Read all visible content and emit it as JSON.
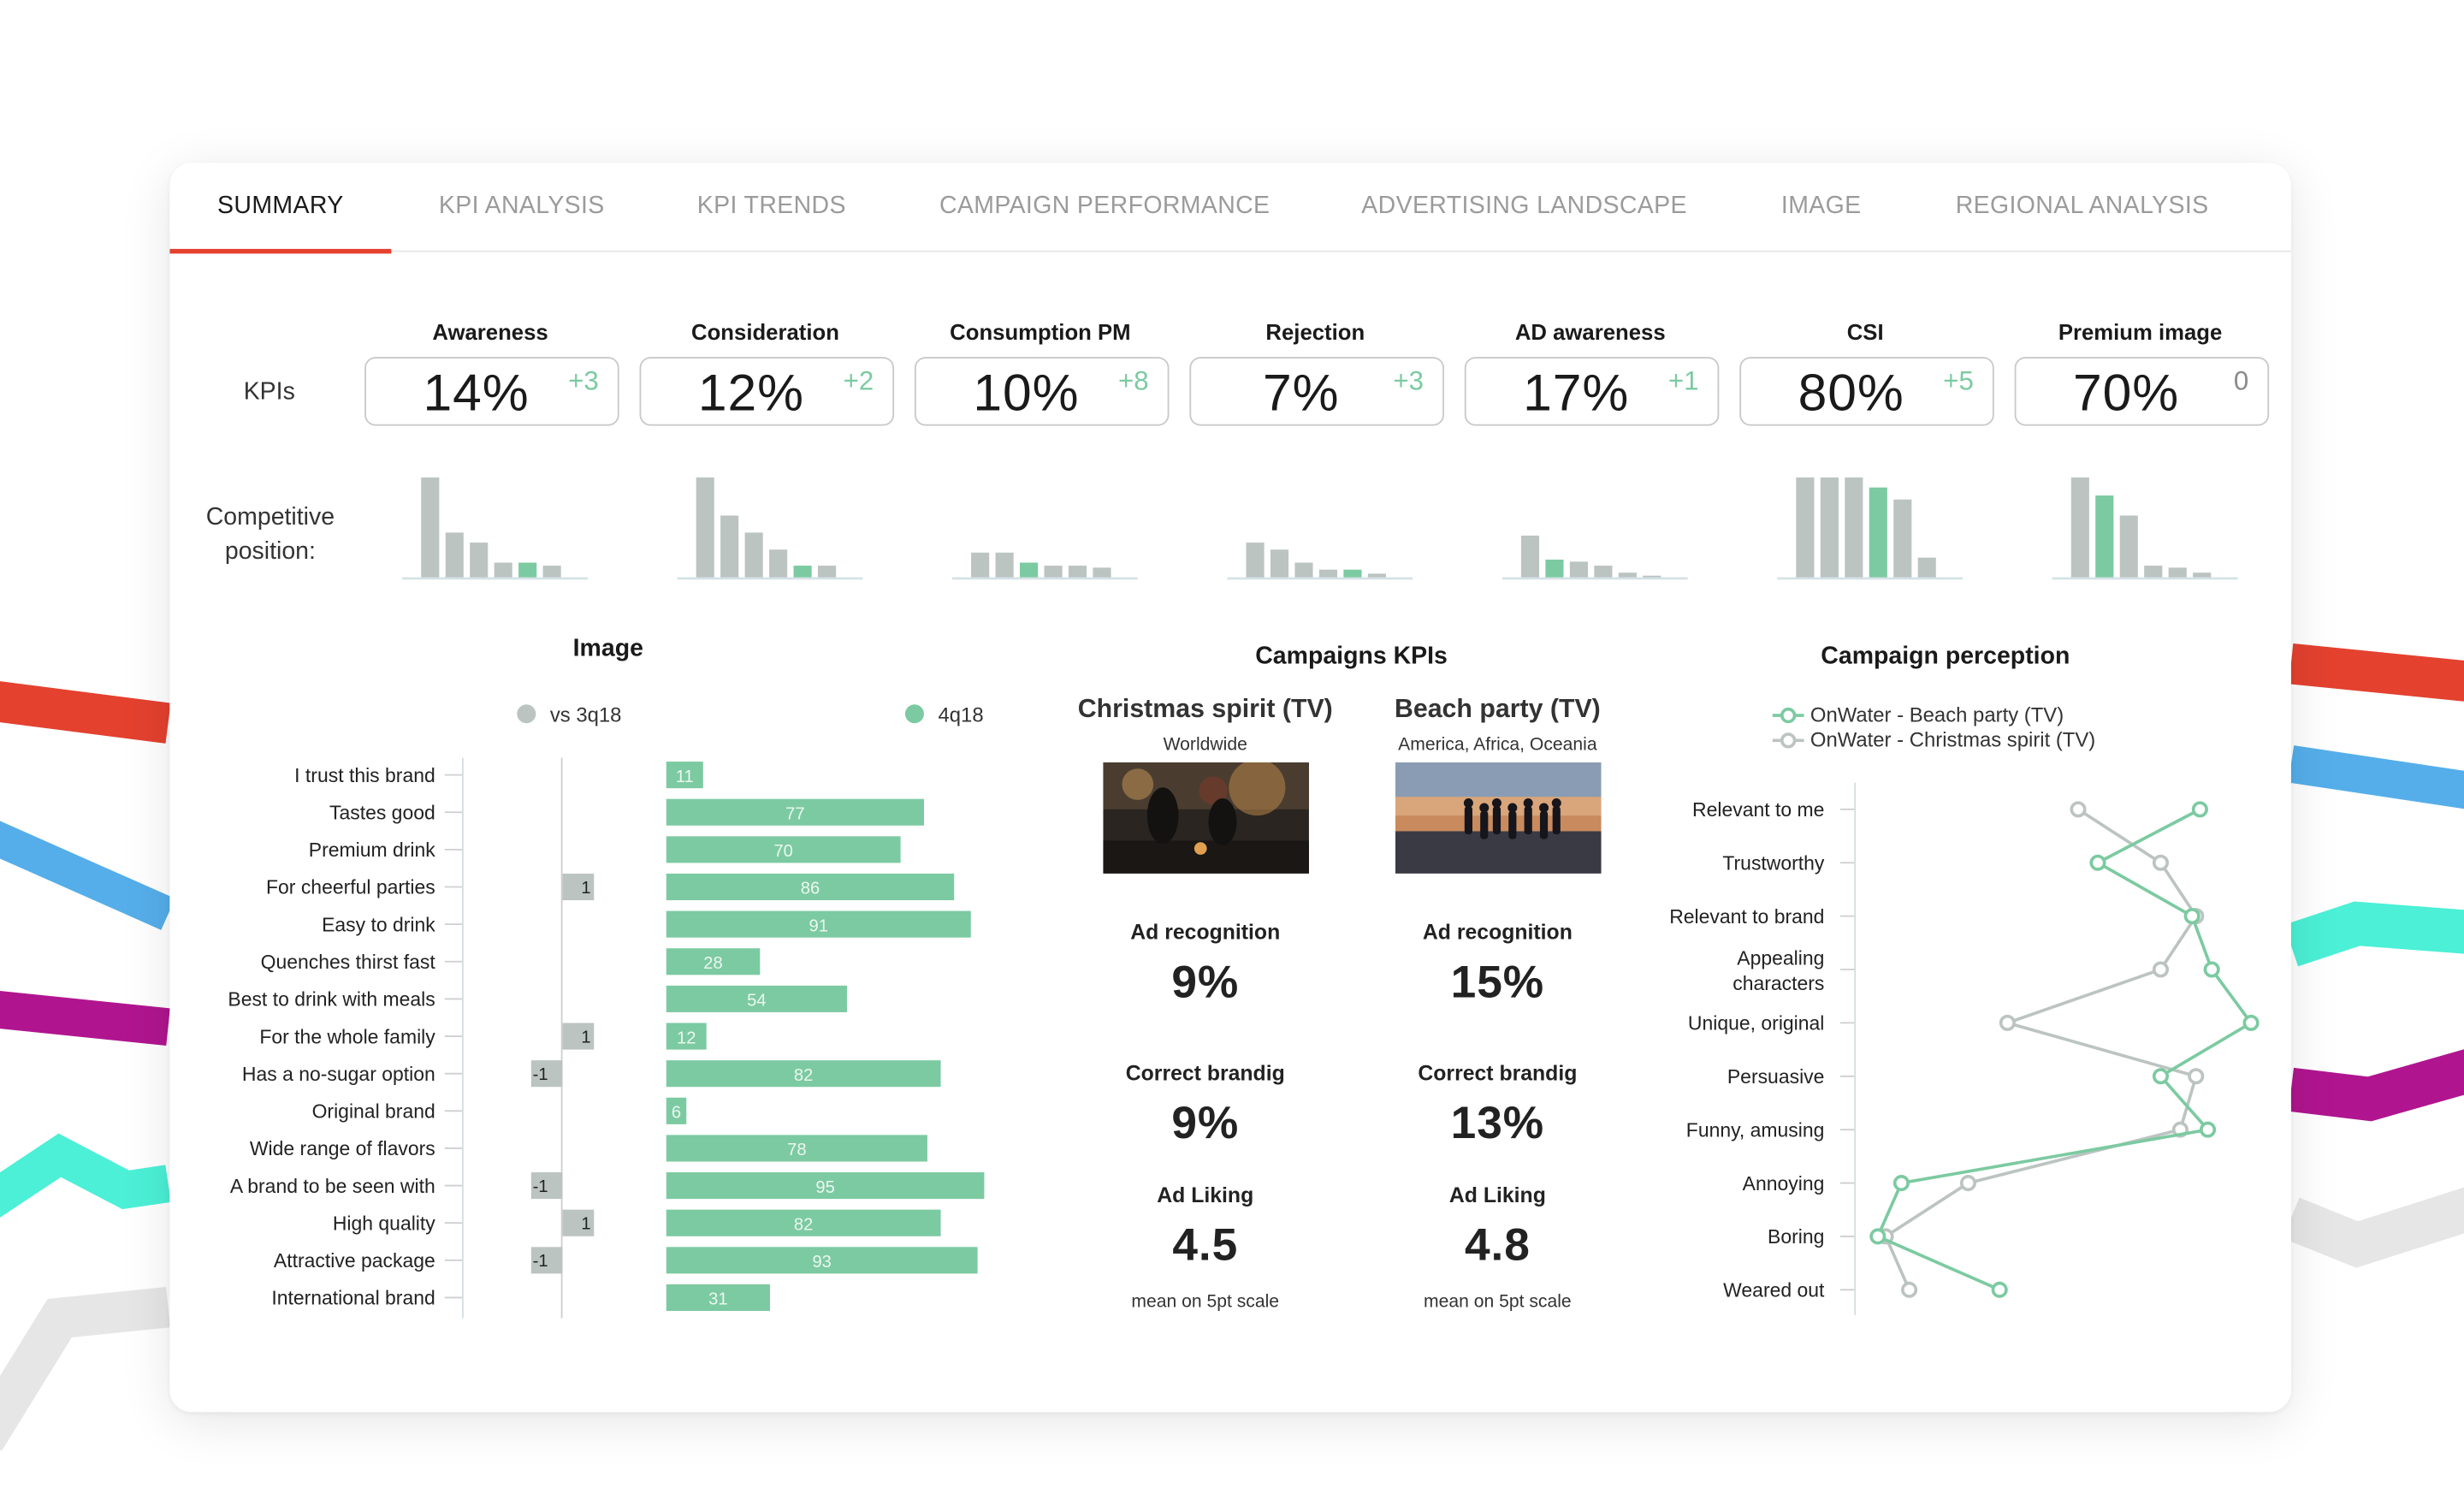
{
  "tabs": [
    {
      "label": "SUMMARY",
      "active": true
    },
    {
      "label": "KPI ANALYSIS",
      "active": false
    },
    {
      "label": "KPI TRENDS",
      "active": false
    },
    {
      "label": "CAMPAIGN PERFORMANCE",
      "active": false
    },
    {
      "label": "ADVERTISING LANDSCAPE",
      "active": false
    },
    {
      "label": "IMAGE",
      "active": false
    },
    {
      "label": "REGIONAL ANALYSIS",
      "active": false
    }
  ],
  "colors": {
    "accent": "#e4412f",
    "green": "#7ccaa1",
    "gray": "#bcc4c2"
  },
  "kpis": {
    "row_label": "KPIs",
    "competitive_label": "Competitive position:",
    "items": [
      {
        "name": "Awareness",
        "value": "14%",
        "delta": "+3"
      },
      {
        "name": "Consideration",
        "value": "12%",
        "delta": "+2"
      },
      {
        "name": "Consumption PM",
        "value": "10%",
        "delta": "+8"
      },
      {
        "name": "Rejection",
        "value": "7%",
        "delta": "+3"
      },
      {
        "name": "AD awareness",
        "value": "17%",
        "delta": "+1"
      },
      {
        "name": "CSI",
        "value": "80%",
        "delta": "+5"
      },
      {
        "name": "Premium image",
        "value": "70%",
        "delta": "0"
      }
    ]
  },
  "chart_data": [
    {
      "type": "bar",
      "title": "Competitive position",
      "note": "one mini bar chart per KPI; highlighted bar = own brand",
      "ylim": [
        0,
        100
      ],
      "charts": [
        {
          "kpi": "Awareness",
          "values": [
            100,
            45,
            35,
            15,
            15,
            12
          ],
          "highlight": 4
        },
        {
          "kpi": "Consideration",
          "values": [
            100,
            62,
            45,
            28,
            12,
            12
          ],
          "highlight": 4
        },
        {
          "kpi": "Consumption PM",
          "values": [
            25,
            25,
            15,
            12,
            12,
            10
          ],
          "highlight": 2
        },
        {
          "kpi": "Rejection",
          "values": [
            35,
            28,
            15,
            8,
            8,
            4
          ],
          "highlight": 4
        },
        {
          "kpi": "AD awareness",
          "values": [
            42,
            18,
            16,
            12,
            5,
            2
          ],
          "highlight": 1
        },
        {
          "kpi": "CSI",
          "values": [
            100,
            100,
            100,
            90,
            78,
            20
          ],
          "highlight": 3
        },
        {
          "kpi": "Premium image",
          "values": [
            100,
            82,
            62,
            12,
            10,
            5
          ],
          "highlight": 1
        }
      ]
    },
    {
      "type": "bar",
      "title": "Image",
      "legend": [
        {
          "label": "vs 3q18",
          "color": "#bcc4c2"
        },
        {
          "label": "4q18",
          "color": "#7ccaa1"
        }
      ],
      "categories": [
        "I trust this brand",
        "Tastes good",
        "Premium drink",
        "For cheerful parties",
        "Easy to drink",
        "Quenches thirst fast",
        "Best to drink with meals",
        "For the whole family",
        "Has a no-sugar option",
        "Original brand",
        "Wide range of flavors",
        "A brand to be seen with",
        "High quality",
        "Attractive package",
        "International brand"
      ],
      "series": [
        {
          "name": "vs 3q18",
          "values": [
            0,
            0,
            0,
            1,
            0,
            0,
            0,
            1,
            -1,
            0,
            0,
            -1,
            1,
            -1,
            0
          ]
        },
        {
          "name": "4q18",
          "values": [
            11,
            77,
            70,
            86,
            91,
            28,
            54,
            12,
            82,
            6,
            78,
            95,
            82,
            93,
            31
          ]
        }
      ]
    },
    {
      "type": "line",
      "title": "Campaign perception",
      "categories": [
        "Relevant to me",
        "Trustworthy",
        "Relevant to brand",
        "Appealing characters",
        "Unique, original",
        "Persuasive",
        "Funny, amusing",
        "Annoying",
        "Boring",
        "Weared out"
      ],
      "series": [
        {
          "name": "OnWater - Beach party (TV)",
          "color": "#7ccaa1",
          "values": [
            0.84,
            0.58,
            0.82,
            0.87,
            0.97,
            0.74,
            0.86,
            0.08,
            0.02,
            0.33
          ]
        },
        {
          "name": "OnWater - Christmas spirit (TV)",
          "color": "#bcc4c2",
          "values": [
            0.53,
            0.74,
            0.83,
            0.74,
            0.35,
            0.83,
            0.79,
            0.25,
            0.04,
            0.1
          ]
        }
      ]
    }
  ],
  "image_section": {
    "title": "Image",
    "legend_prev": "vs 3q18",
    "legend_curr": "4q18"
  },
  "campaigns": {
    "title": "Campaigns KPIs",
    "items": [
      {
        "title": "Christmas spirit (TV)",
        "region": "Worldwide",
        "ad_recognition_label": "Ad recognition",
        "ad_recognition": "9%",
        "branding_label": "Correct brandig",
        "branding": "9%",
        "liking_label": "Ad Liking",
        "liking": "4.5",
        "liking_note": "mean on 5pt scale"
      },
      {
        "title": "Beach party (TV)",
        "region": "America, Africa, Oceania",
        "ad_recognition_label": "Ad recognition",
        "ad_recognition": "15%",
        "branding_label": "Correct brandig",
        "branding": "13%",
        "liking_label": "Ad Liking",
        "liking": "4.8",
        "liking_note": "mean on 5pt scale"
      }
    ]
  },
  "perception": {
    "title": "Campaign perception",
    "legend_beach": "OnWater - Beach party (TV)",
    "legend_christmas": "OnWater - Christmas spirit (TV)"
  }
}
